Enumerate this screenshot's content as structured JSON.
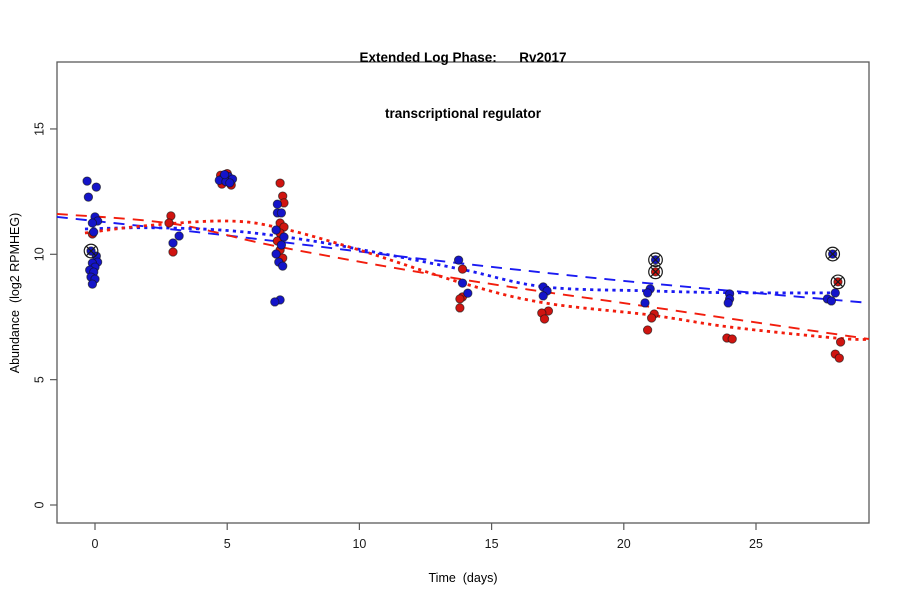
{
  "page": {
    "background": "#ffffff"
  },
  "chart_data": {
    "type": "scatter",
    "title_line1": "Extended Log Phase:      Rv2017",
    "title_line2": "transcriptional regulator",
    "xlabel": "Time  (days)",
    "ylabel": "Abundance  (log2 RPMHEG)",
    "x_ticks": [
      0,
      5,
      10,
      15,
      20,
      25
    ],
    "y_ticks": [
      0,
      5,
      10,
      15
    ],
    "xlim": [
      -1.44,
      29.27
    ],
    "ylim": [
      -0.7,
      17.7
    ],
    "grid": "off",
    "legend": "none",
    "colors": {
      "point_red": "#d01410",
      "point_blue": "#1414c9",
      "line_red": "#f21d0d",
      "line_blue": "#1a1af2",
      "frame": "#5a5a5a",
      "tick_text": "#1a1a1a",
      "marker_overlay": "#1a1a1a"
    },
    "series": [
      {
        "name": "red-condition",
        "color": "red",
        "points": [
          [
            -0.1,
            10.81
          ],
          [
            2.87,
            11.53
          ],
          [
            2.8,
            11.25
          ],
          [
            2.95,
            10.09
          ],
          [
            4.75,
            13.15
          ],
          [
            5.0,
            13.22
          ],
          [
            4.8,
            12.8
          ],
          [
            5.15,
            12.76
          ],
          [
            7.0,
            12.84
          ],
          [
            7.1,
            12.32
          ],
          [
            7.15,
            12.05
          ],
          [
            7.0,
            11.25
          ],
          [
            7.15,
            11.09
          ],
          [
            7.0,
            10.85
          ],
          [
            6.9,
            10.53
          ],
          [
            7.0,
            10.17
          ],
          [
            7.1,
            9.85
          ],
          [
            13.9,
            9.41
          ],
          [
            13.9,
            8.3
          ],
          [
            13.8,
            8.22
          ],
          [
            13.8,
            7.86
          ],
          [
            17.15,
            7.74
          ],
          [
            16.9,
            7.66
          ],
          [
            17.0,
            7.42
          ],
          [
            21.15,
            7.62
          ],
          [
            21.05,
            7.46
          ],
          [
            20.9,
            6.98
          ],
          [
            23.9,
            6.66
          ],
          [
            24.1,
            6.62
          ],
          [
            28.2,
            6.5
          ],
          [
            28.0,
            6.02
          ],
          [
            28.15,
            5.86
          ]
        ]
      },
      {
        "name": "blue-condition",
        "color": "blue",
        "points": [
          [
            -0.3,
            12.92
          ],
          [
            0.05,
            12.68
          ],
          [
            -0.25,
            12.28
          ],
          [
            0.0,
            11.49
          ],
          [
            0.1,
            11.33
          ],
          [
            -0.1,
            11.25
          ],
          [
            -0.05,
            10.89
          ],
          [
            0.05,
            9.93
          ],
          [
            0.1,
            9.69
          ],
          [
            -0.1,
            9.65
          ],
          [
            0.0,
            9.49
          ],
          [
            -0.2,
            9.37
          ],
          [
            -0.05,
            9.29
          ],
          [
            -0.15,
            9.09
          ],
          [
            0.0,
            9.01
          ],
          [
            -0.1,
            8.81
          ],
          [
            3.18,
            10.73
          ],
          [
            2.95,
            10.45
          ],
          [
            4.85,
            13.05
          ],
          [
            5.05,
            13.1
          ],
          [
            4.7,
            12.95
          ],
          [
            4.95,
            12.9
          ],
          [
            5.2,
            13.0
          ],
          [
            4.9,
            13.18
          ],
          [
            5.1,
            12.85
          ],
          [
            6.9,
            12.0
          ],
          [
            6.9,
            11.65
          ],
          [
            7.05,
            11.65
          ],
          [
            6.85,
            10.97
          ],
          [
            7.15,
            10.69
          ],
          [
            7.05,
            10.37
          ],
          [
            6.85,
            10.01
          ],
          [
            6.95,
            9.69
          ],
          [
            7.1,
            9.53
          ],
          [
            7.0,
            8.18
          ],
          [
            6.8,
            8.1
          ],
          [
            13.75,
            9.77
          ],
          [
            13.9,
            8.85
          ],
          [
            14.1,
            8.45
          ],
          [
            16.95,
            8.7
          ],
          [
            17.1,
            8.54
          ],
          [
            16.95,
            8.34
          ],
          [
            21.0,
            8.62
          ],
          [
            20.9,
            8.46
          ],
          [
            20.8,
            8.06
          ],
          [
            24.0,
            8.42
          ],
          [
            24.0,
            8.22
          ],
          [
            23.95,
            8.06
          ],
          [
            28.0,
            8.46
          ],
          [
            27.7,
            8.22
          ],
          [
            27.85,
            8.14
          ]
        ]
      }
    ],
    "flagged_points": [
      {
        "day": -0.15,
        "value": 10.13,
        "color": "blue"
      },
      {
        "day": 21.2,
        "value": 9.78,
        "color": "blue"
      },
      {
        "day": 21.2,
        "value": 9.3,
        "color": "red"
      },
      {
        "day": 27.9,
        "value": 10.01,
        "color": "blue"
      },
      {
        "day": 28.1,
        "value": 8.9,
        "color": "red"
      }
    ],
    "trend_lines": [
      {
        "name": "blue-dashed-fit",
        "color": "blue",
        "style": "dashed",
        "points": [
          [
            -1.44,
            11.49
          ],
          [
            5,
            10.75
          ],
          [
            12,
            9.86
          ],
          [
            20,
            8.94
          ],
          [
            29.27,
            8.06
          ]
        ]
      },
      {
        "name": "red-dashed-fit",
        "color": "red",
        "style": "dashed",
        "points": [
          [
            -1.44,
            11.61
          ],
          [
            3,
            11.21
          ],
          [
            7,
            10.29
          ],
          [
            14,
            8.98
          ],
          [
            21,
            7.9
          ],
          [
            29.27,
            6.62
          ]
        ]
      },
      {
        "name": "blue-dotted-fit",
        "color": "blue",
        "style": "dotted",
        "points": [
          [
            -0.38,
            11.01
          ],
          [
            2,
            11.06
          ],
          [
            5,
            10.95
          ],
          [
            8,
            10.57
          ],
          [
            11,
            10.0
          ],
          [
            14,
            9.37
          ],
          [
            17,
            8.7
          ],
          [
            21,
            8.54
          ],
          [
            24,
            8.47
          ],
          [
            28,
            8.46
          ]
        ]
      },
      {
        "name": "red-dotted-fit",
        "color": "red",
        "style": "dotted",
        "points": [
          [
            -0.38,
            10.85
          ],
          [
            2,
            11.15
          ],
          [
            5,
            11.33
          ],
          [
            7,
            11.05
          ],
          [
            10,
            10.17
          ],
          [
            14,
            8.82
          ],
          [
            17,
            8.06
          ],
          [
            21,
            7.58
          ],
          [
            24,
            7.1
          ],
          [
            28,
            6.66
          ],
          [
            29.27,
            6.6
          ]
        ]
      }
    ]
  }
}
